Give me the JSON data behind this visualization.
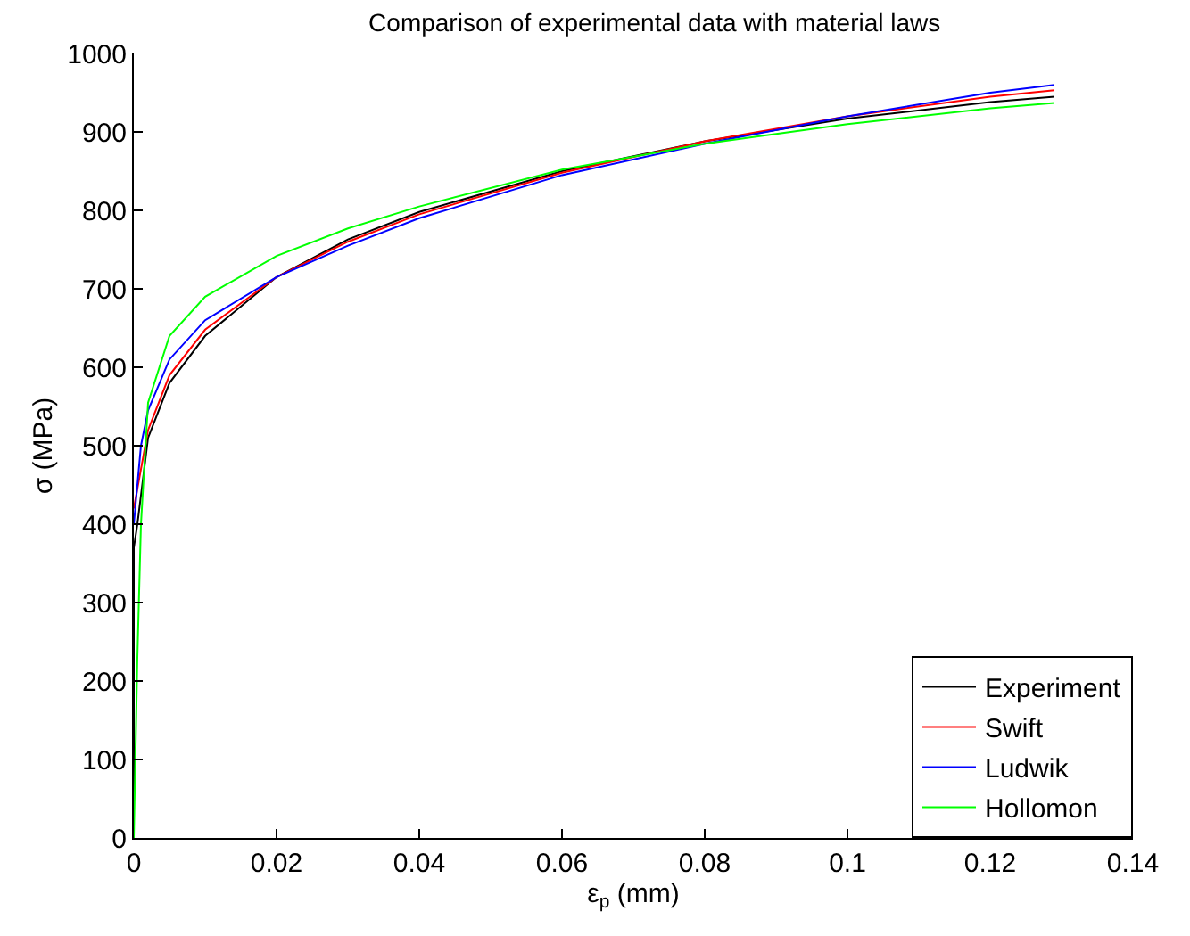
{
  "chart_data": {
    "type": "line",
    "title": "Comparison of experimental data with material laws",
    "xlabel": "ε$_{p}$ (mm)",
    "ylabel": "σ (MPa)",
    "xlim": [
      0,
      0.14
    ],
    "xticks": [
      0,
      0.02,
      0.04,
      0.06,
      0.08,
      0.1,
      0.12,
      0.14
    ],
    "ylim": [
      0,
      1000
    ],
    "yticks": [
      0,
      100,
      200,
      300,
      400,
      500,
      600,
      700,
      800,
      900,
      1000
    ],
    "legend": "bottom right",
    "marker": "none",
    "line_style": "solid",
    "series": [
      {
        "name": "Experiment",
        "color": "#000000",
        "x": [
          0,
          0,
          0.0005,
          0.002,
          0.005,
          0.01,
          0.02,
          0.03,
          0.04,
          0.06,
          0.08,
          0.1,
          0.12,
          0.129
        ],
        "values": [
          0,
          370,
          400,
          510,
          580,
          640,
          715,
          763,
          798,
          850,
          888,
          917,
          938,
          945
        ]
      },
      {
        "name": "Swift",
        "color": "#ff0000",
        "x": [
          0,
          0.002,
          0.005,
          0.01,
          0.02,
          0.03,
          0.04,
          0.06,
          0.08,
          0.1,
          0.12,
          0.129
        ],
        "values": [
          420,
          520,
          590,
          648,
          715,
          760,
          795,
          848,
          888,
          920,
          945,
          953
        ]
      },
      {
        "name": "Ludwik",
        "color": "#0000ff",
        "x": [
          0,
          0.001,
          0.002,
          0.005,
          0.01,
          0.02,
          0.03,
          0.04,
          0.06,
          0.08,
          0.1,
          0.12,
          0.129
        ],
        "values": [
          400,
          500,
          545,
          610,
          660,
          715,
          755,
          790,
          845,
          885,
          920,
          950,
          960
        ]
      },
      {
        "name": "Hollomon",
        "color": "#00ff00",
        "x": [
          0,
          0.0005,
          0.001,
          0.002,
          0.005,
          0.01,
          0.02,
          0.03,
          0.04,
          0.06,
          0.08,
          0.1,
          0.12,
          0.129
        ],
        "values": [
          0,
          230,
          400,
          555,
          640,
          690,
          742,
          777,
          805,
          852,
          885,
          910,
          930,
          937
        ]
      }
    ]
  }
}
